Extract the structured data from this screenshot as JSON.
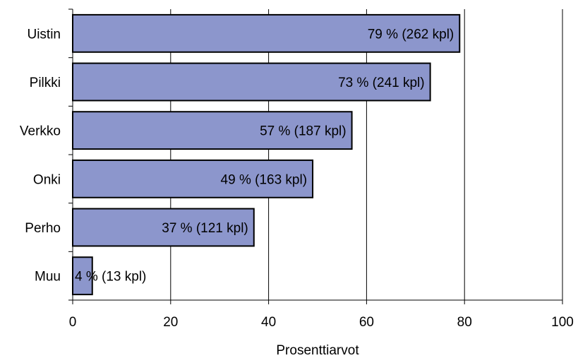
{
  "chart_data": {
    "type": "bar",
    "orientation": "horizontal",
    "categories": [
      "Uistin",
      "Pilkki",
      "Verkko",
      "Onki",
      "Perho",
      "Muu"
    ],
    "values": [
      79,
      73,
      57,
      49,
      37,
      4
    ],
    "data_labels": [
      "79 % (262 kpl)",
      "73 % (241 kpl)",
      "57 % (187 kpl)",
      "49 % (163 kpl)",
      "37 % (121 kpl)",
      "4 % (13 kpl)"
    ],
    "xlabel": "Prosenttiarvot",
    "ylabel": "",
    "xlim": [
      0,
      100
    ],
    "xticks": [
      0,
      20,
      40,
      60,
      80,
      100
    ],
    "xtick_labels": [
      "0",
      "20",
      "40",
      "60",
      "80",
      "100"
    ],
    "grid": "vertical",
    "legend": "none",
    "bar_color": "#8c96cc",
    "bar_stroke": "#000000",
    "grid_color": "#000000"
  }
}
